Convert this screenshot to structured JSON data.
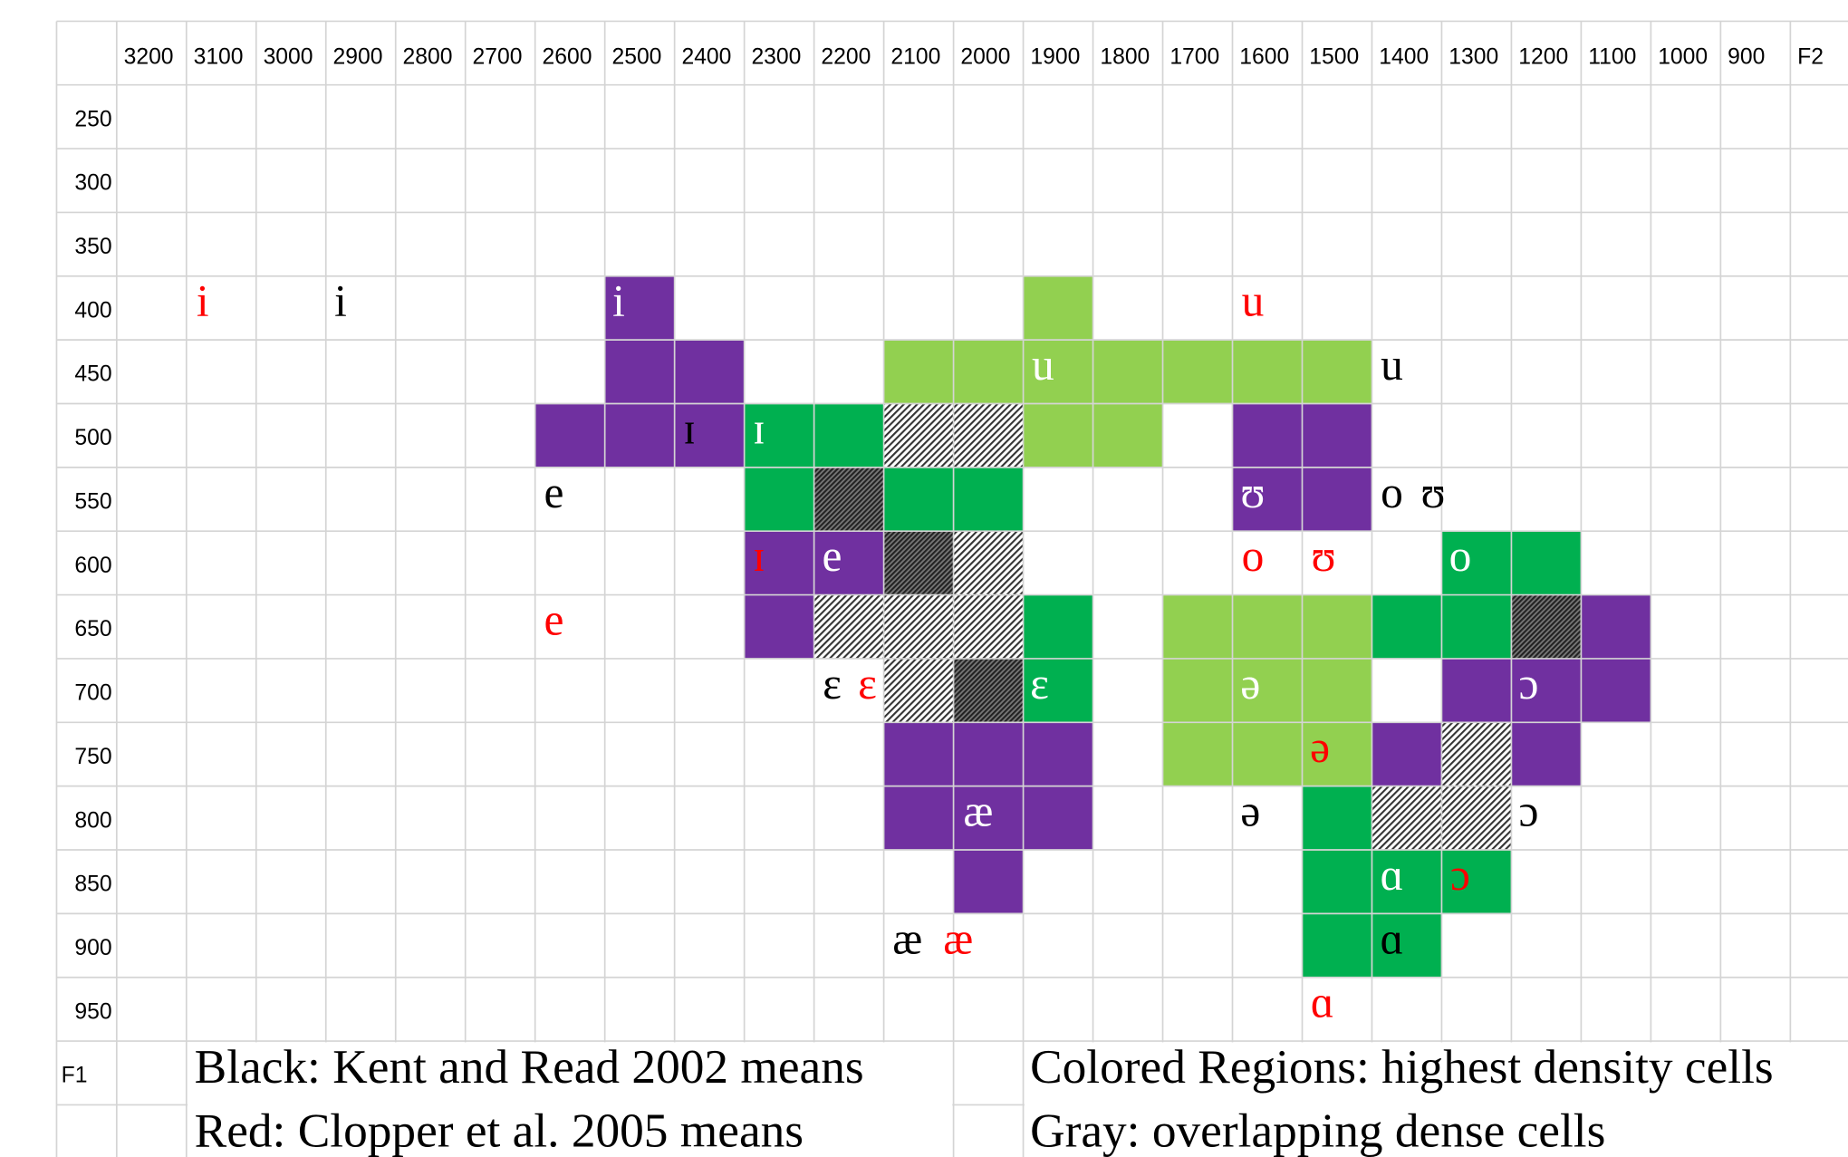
{
  "columns": [
    "3200",
    "3100",
    "3000",
    "2900",
    "2800",
    "2700",
    "2600",
    "2500",
    "2400",
    "2300",
    "2200",
    "2100",
    "2000",
    "1900",
    "1800",
    "1700",
    "1600",
    "1500",
    "1400",
    "1300",
    "1200",
    "1100",
    "1000",
    "900",
    "F2"
  ],
  "rows": [
    "250",
    "300",
    "350",
    "400",
    "450",
    "500",
    "550",
    "600",
    "650",
    "700",
    "750",
    "800",
    "850",
    "900",
    "950",
    "F1"
  ],
  "symbols": [
    {
      "text": "i",
      "color": "#ff0000"
    },
    {
      "text": "i",
      "color": "#000000"
    },
    {
      "text": "i",
      "color": "#ffffff"
    },
    {
      "text": "u",
      "color": "#ff0000"
    },
    {
      "text": "u",
      "color": "#ffffff"
    },
    {
      "text": "u",
      "color": "#000000"
    },
    {
      "text": "ɪ",
      "color": "#000000"
    },
    {
      "text": "ɪ",
      "color": "#ffffff"
    },
    {
      "text": "e",
      "color": "#000000"
    },
    {
      "text": "ʊ",
      "color": "#ffffff"
    },
    {
      "text": "o",
      "color": "#000000"
    },
    {
      "text": "ʊ",
      "color": "#000000"
    },
    {
      "text": "ɪ",
      "color": "#ff0000"
    },
    {
      "text": "e",
      "color": "#ffffff"
    },
    {
      "text": "o",
      "color": "#ff0000"
    },
    {
      "text": "ʊ",
      "color": "#ff0000"
    },
    {
      "text": "o",
      "color": "#ffffff"
    },
    {
      "text": "e",
      "color": "#ff0000"
    },
    {
      "text": "ɛ",
      "color": "#000000"
    },
    {
      "text": "ɛ",
      "color": "#ff0000"
    },
    {
      "text": "ɛ",
      "color": "#ffffff"
    },
    {
      "text": "ə",
      "color": "#ffffff"
    },
    {
      "text": "ɔ",
      "color": "#ffffff"
    },
    {
      "text": "ə",
      "color": "#ff0000"
    },
    {
      "text": "æ",
      "color": "#ffffff"
    },
    {
      "text": "ə",
      "color": "#000000"
    },
    {
      "text": "ɔ",
      "color": "#000000"
    },
    {
      "text": "ɑ",
      "color": "#ffffff"
    },
    {
      "text": "ɔ",
      "color": "#ff0000"
    },
    {
      "text": "æ",
      "color": "#000000"
    },
    {
      "text": "æ",
      "color": "#ff0000"
    },
    {
      "text": "ɑ",
      "color": "#000000"
    },
    {
      "text": "ɑ",
      "color": "#ff0000"
    }
  ],
  "legend": [
    "Black: Kent and Read 2002 means",
    "Red:  Clopper et al. 2005 means",
    "Colored Regions: highest density cells",
    "Gray: overlapping dense cells"
  ]
}
